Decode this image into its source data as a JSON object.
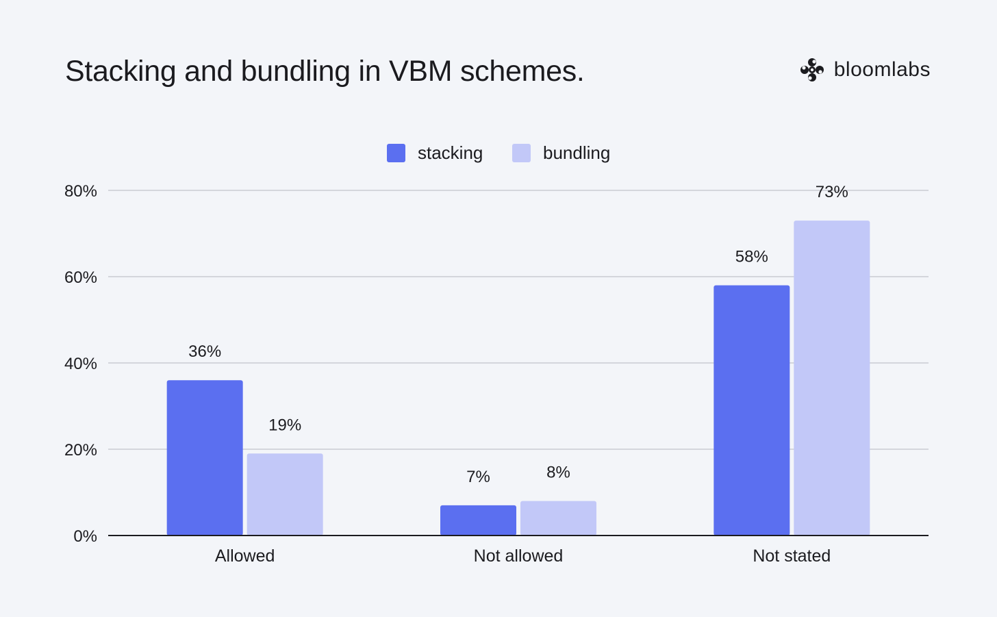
{
  "title": "Stacking and bundling in VBM schemes.",
  "brand": {
    "name": "bloomlabs",
    "icon": "bloomlabs-logo-icon"
  },
  "chart_data": {
    "type": "bar",
    "title": "Stacking and bundling in VBM schemes.",
    "categories": [
      "Allowed",
      "Not allowed",
      "Not stated"
    ],
    "series": [
      {
        "name": "stacking",
        "values": [
          36,
          7,
          58
        ],
        "labels": [
          "36%",
          "7%",
          "58%"
        ],
        "color": "#5b6ff0"
      },
      {
        "name": "bundling",
        "values": [
          19,
          8,
          73
        ],
        "labels": [
          "19%",
          "8%",
          "73%"
        ],
        "color": "#c2c8f8"
      }
    ],
    "ylim": [
      0,
      80
    ],
    "yticks": [
      0,
      20,
      40,
      60,
      80
    ],
    "ytick_labels": [
      "0%",
      "20%",
      "40%",
      "60%",
      "80%"
    ],
    "xlabel": "",
    "ylabel": "",
    "grid": true,
    "legend_position": "top-center"
  }
}
